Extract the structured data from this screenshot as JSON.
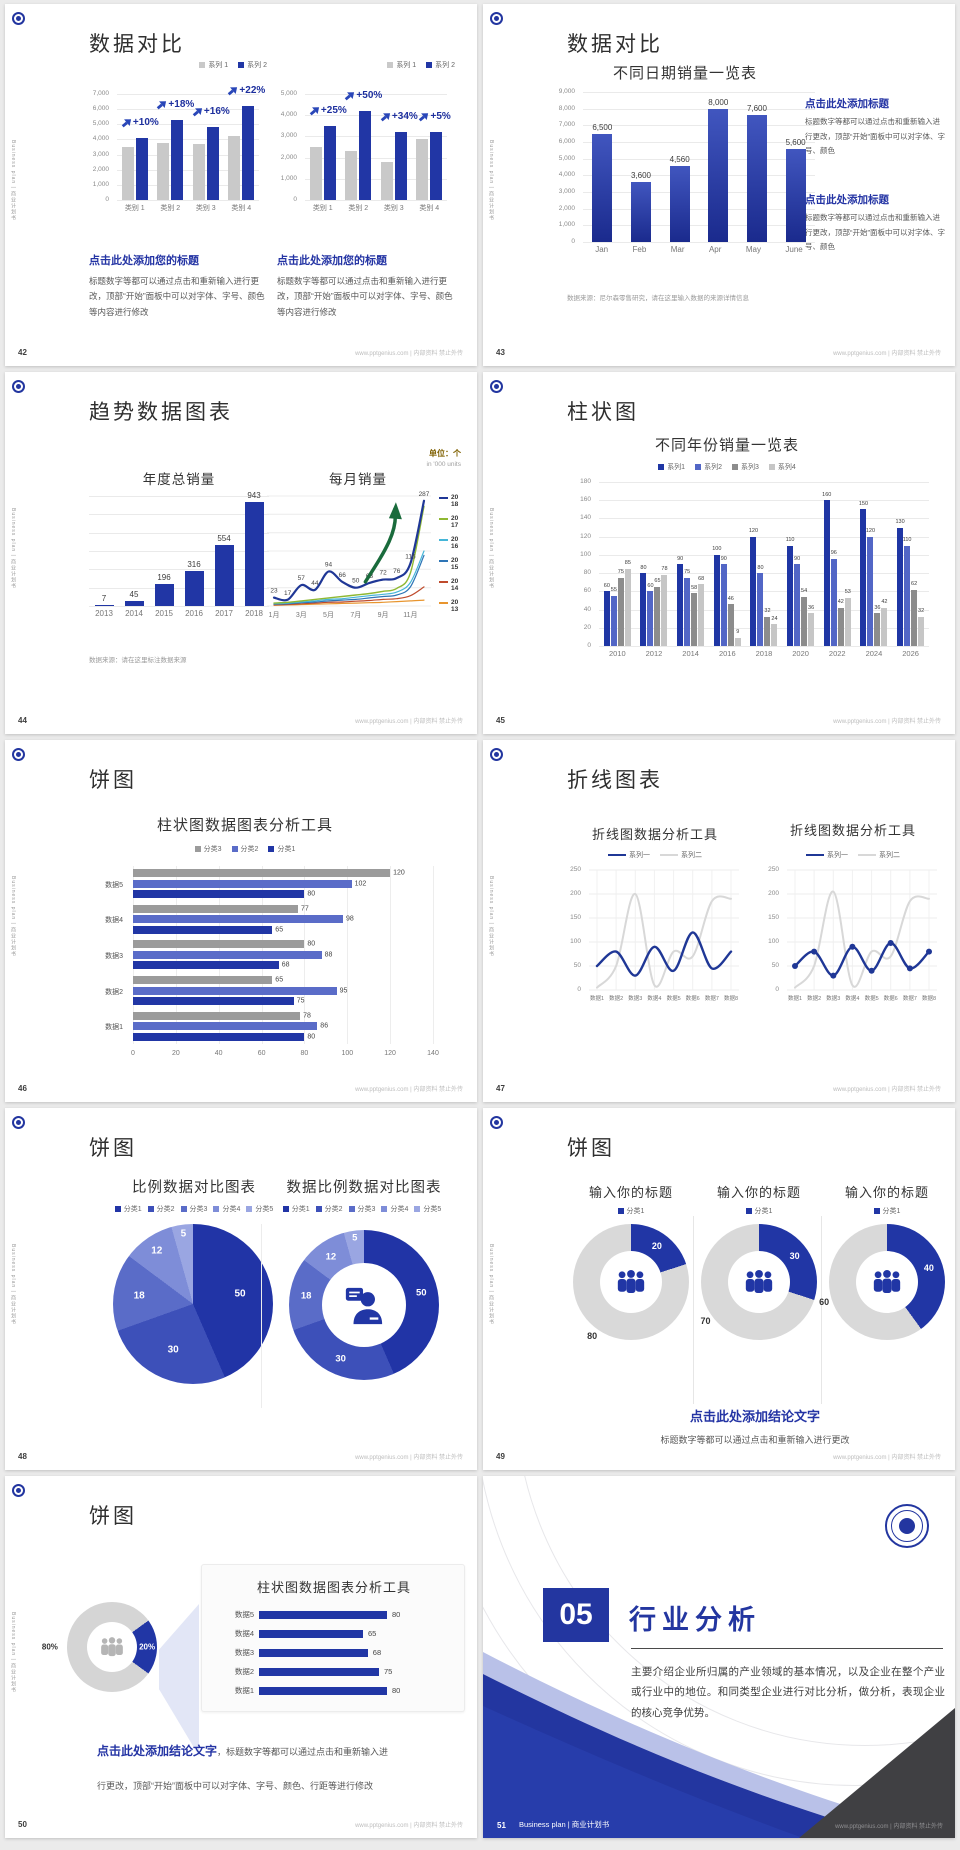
{
  "footer_site": "www.pptgenius.com | 内部资料 禁止外传",
  "sidebar_vertical": "Business plan | 商业计划书",
  "colors": {
    "primary_blue": "#2136a5",
    "mid_blue": "#5a6cc8",
    "light_gray_bar": "#c9c9c9",
    "dark_gray_bar": "#8c8c8c",
    "heading_blue": "#2434a4",
    "unit_gold": "#7f6000",
    "arrow_green": "#1a6b3c"
  },
  "slides": {
    "s42": {
      "page": "42",
      "title": "数据对比",
      "block1": {
        "heading": "点击此处添加您的标题",
        "body": "标题数字等都可以通过点击和重新输入进行更改，顶部“开始”面板中可以对字体、字号、颜色等内容进行修改"
      },
      "block2": {
        "heading": "点击此处添加您的标题",
        "body": "标题数字等都可以通过点击和重新输入进行更改，顶部“开始”面板中可以对字体、字号、颜色等内容进行修改"
      }
    },
    "s43": {
      "page": "43",
      "title": "数据对比",
      "note": "数据来源：尼尔森零售研究，请在这里输入数据的来源详情信息",
      "block1": {
        "heading": "点击此处添加标题",
        "body": "标题数字等都可以通过点击和重新输入进行更改，顶部“开始”面板中可以对字体、字号、颜色"
      },
      "block2": {
        "heading": "点击此处添加标题",
        "body": "标题数字等都可以通过点击和重新输入进行更改，顶部“开始”面板中可以对字体、字号、颜色"
      }
    },
    "s44": {
      "page": "44",
      "title": "趋势数据图表",
      "unit": "单位：个",
      "unit_sub": "in '000 units",
      "note": "数据来源：请在这里标注数据来源"
    },
    "s45": {
      "page": "45",
      "title": "柱状图"
    },
    "s46": {
      "page": "46",
      "title": "饼图"
    },
    "s47": {
      "page": "47",
      "title": "折线图表"
    },
    "s48": {
      "page": "48",
      "title": "饼图"
    },
    "s49": {
      "page": "49",
      "title": "饼图",
      "conclusion_heading": "点击此处添加结论文字",
      "conclusion_body": "标题数字等都可以通过点击和重新输入进行更改"
    },
    "s50": {
      "page": "50",
      "title": "饼图",
      "conclusion_heading": "点击此处添加结论文字",
      "conclusion_line1": "，标题数字等都可以通过点击和重新输入进",
      "conclusion_line2": "行更改，顶部“开始”面板中可以对字体、字号、颜色、行距等进行修改"
    },
    "s51": {
      "page": "51",
      "number": "05",
      "title": "行业分析",
      "body": "主要介绍企业所归属的产业领域的基本情况，以及企业在整个产业或行业中的地位。和同类型企业进行对比分析，做分析，表现企业的核心竞争优势。",
      "footer_label": "Business plan | 商业计划书"
    }
  },
  "chart_data": {
    "c42a": {
      "type": "bar",
      "legend": [
        {
          "label": "系列 1",
          "color": "#c9c9c9"
        },
        {
          "label": "系列 2",
          "color": "#2136a5"
        }
      ],
      "categories": [
        "类别 1",
        "类别 2",
        "类别 3",
        "类别 4"
      ],
      "ymax": 7000,
      "yticks": [
        "7,000",
        "6,000",
        "5,000",
        "4,000",
        "3,000",
        "2,000",
        "1,000",
        "0"
      ],
      "series": [
        {
          "name": "系列 1",
          "color": "#c9c9c9",
          "values": [
            3500,
            3800,
            3700,
            4200
          ]
        },
        {
          "name": "系列 2",
          "color": "#2136a5",
          "values": [
            4100,
            5300,
            4800,
            6200
          ]
        }
      ],
      "pct": [
        "+10%",
        "+18%",
        "+16%",
        "+22%"
      ]
    },
    "c42b": {
      "type": "bar",
      "legend": [
        {
          "label": "系列 1",
          "color": "#c9c9c9"
        },
        {
          "label": "系列 2",
          "color": "#2136a5"
        }
      ],
      "categories": [
        "类别 1",
        "类别 2",
        "类别 3",
        "类别 4"
      ],
      "ymax": 5000,
      "yticks": [
        "5,000",
        "4,000",
        "3,000",
        "2,000",
        "1,000",
        "0"
      ],
      "series": [
        {
          "name": "系列 1",
          "color": "#c9c9c9",
          "values": [
            2500,
            2300,
            1800,
            2900
          ]
        },
        {
          "name": "系列 2",
          "color": "#2136a5",
          "values": [
            3500,
            4200,
            3200,
            3200
          ]
        }
      ],
      "pct": [
        "+25%",
        "+50%",
        "+34%",
        "+5%"
      ]
    },
    "c43": {
      "type": "bar",
      "title": "不同日期销量一览表",
      "categories": [
        "Jan",
        "Feb",
        "Mar",
        "Apr",
        "May",
        "June"
      ],
      "ymax": 9000,
      "yticks": [
        "9,000",
        "8,000",
        "7,000",
        "6,000",
        "5,000",
        "4,000",
        "3,000",
        "2,000",
        "1,000",
        "0"
      ],
      "series": [
        {
          "name": "销量",
          "color": "#2136a5",
          "values": [
            6500,
            3600,
            4560,
            8000,
            7600,
            5600
          ],
          "labels": [
            "6,500",
            "3,600",
            "4,560",
            "8,000",
            "7,600",
            "5,600"
          ]
        }
      ]
    },
    "c44a": {
      "type": "bar",
      "title": "年度总销量",
      "categories": [
        "2013",
        "2014",
        "2015",
        "2016",
        "2017",
        "2018"
      ],
      "ymax": 1000,
      "series": [
        {
          "name": "年度总销量",
          "color": "#2136a5",
          "values": [
            7,
            45,
            196,
            316,
            554,
            943
          ],
          "labels": [
            "7",
            "45",
            "196",
            "316",
            "554",
            "943"
          ]
        }
      ]
    },
    "c44b": {
      "type": "line",
      "title": "每月销量",
      "x": [
        "1月",
        null,
        "3月",
        null,
        "5月",
        null,
        "7月",
        null,
        "9月",
        null,
        "11月",
        null
      ],
      "ymax": 300,
      "arrow": true,
      "series": [
        {
          "name": "2018",
          "color": "#1f3796",
          "width": 2.2,
          "values": [
            23,
            17,
            57,
            44,
            94,
            66,
            50,
            63,
            72,
            76,
            116,
            287
          ],
          "labels": [
            "23",
            "17",
            "57",
            "44",
            "94",
            "66",
            "50",
            "63",
            "72",
            "76",
            "116",
            "287"
          ]
        },
        {
          "name": "2017",
          "color": "#8fb832",
          "width": 1.4,
          "values": [
            8,
            10,
            14,
            18,
            22,
            26,
            30,
            34,
            40,
            48,
            90,
            272
          ]
        },
        {
          "name": "2016",
          "color": "#45b6d8",
          "width": 1.2,
          "values": [
            6,
            8,
            11,
            14,
            18,
            20,
            24,
            28,
            32,
            38,
            64,
            150
          ]
        },
        {
          "name": "2015",
          "color": "#2e75b6",
          "width": 1.2,
          "values": [
            5,
            6,
            9,
            11,
            14,
            16,
            18,
            22,
            26,
            30,
            52,
            138
          ]
        },
        {
          "name": "2014",
          "color": "#bf4b2c",
          "width": 1.2,
          "values": [
            3,
            4,
            6,
            8,
            10,
            11,
            13,
            15,
            18,
            20,
            28,
            52
          ]
        },
        {
          "name": "2013",
          "color": "#e8952e",
          "width": 1.2,
          "values": [
            2,
            3,
            4,
            5,
            6,
            7,
            8,
            9,
            10,
            12,
            14,
            16
          ]
        }
      ]
    },
    "c45": {
      "type": "bar",
      "title": "不同年份销量一览表",
      "legend": [
        {
          "label": "系列1",
          "color": "#1f36a4"
        },
        {
          "label": "系列2",
          "color": "#5266c6"
        },
        {
          "label": "系列3",
          "color": "#8c8c8c"
        },
        {
          "label": "系列4",
          "color": "#c6c6c6"
        }
      ],
      "categories": [
        "2010",
        "2012",
        "2014",
        "2016",
        "2018",
        "2020",
        "2022",
        "2024",
        "2026"
      ],
      "ymax": 180,
      "yticks": [
        "180",
        "160",
        "140",
        "120",
        "100",
        "80",
        "60",
        "40",
        "20",
        "0"
      ],
      "series": [
        {
          "name": "系列1",
          "color": "#1f36a4",
          "values": [
            60,
            80,
            90,
            100,
            120,
            110,
            160,
            150,
            130
          ],
          "labels": [
            "60",
            "80",
            "90",
            "100",
            "120",
            "110",
            "160",
            "150",
            "130"
          ]
        },
        {
          "name": "系列2",
          "color": "#5266c6",
          "values": [
            55,
            60,
            75,
            90,
            80,
            90,
            96,
            120,
            110
          ],
          "labels": [
            "55",
            "60",
            "75",
            "90",
            "80",
            "90",
            "96",
            "120",
            "110"
          ]
        },
        {
          "name": "系列3",
          "color": "#8c8c8c",
          "values": [
            75,
            65,
            58,
            46,
            32,
            54,
            42,
            36,
            62
          ],
          "labels": [
            "75",
            "65",
            "58",
            "46",
            "32",
            "54",
            "42",
            "36",
            "62"
          ]
        },
        {
          "name": "系列4",
          "color": "#c6c6c6",
          "values": [
            85,
            78,
            68,
            9,
            24,
            36,
            53,
            42,
            32
          ],
          "labels": [
            "85",
            "78",
            "68",
            "9",
            "24",
            "36",
            "53",
            "42",
            "32"
          ]
        }
      ]
    },
    "c46": {
      "type": "hbar",
      "title": "柱状图数据图表分析工具",
      "legend": [
        {
          "label": "分类3",
          "color": "#9b9b9b"
        },
        {
          "label": "分类2",
          "color": "#5a6cc8"
        },
        {
          "label": "分类1",
          "color": "#2136a5"
        }
      ],
      "categories": [
        "数据5",
        "数据4",
        "数据3",
        "数据2",
        "数据1"
      ],
      "xmax": 140,
      "xticks": [
        "0",
        "20",
        "40",
        "60",
        "80",
        "100",
        "120",
        "140"
      ],
      "series": [
        {
          "name": "分类3",
          "color": "#9b9b9b",
          "values": [
            120,
            77,
            80,
            65,
            78
          ]
        },
        {
          "name": "分类2",
          "color": "#5a6cc8",
          "values": [
            102,
            98,
            88,
            95,
            86
          ]
        },
        {
          "name": "分类1",
          "color": "#2136a5",
          "values": [
            80,
            65,
            68,
            75,
            80
          ]
        }
      ]
    },
    "c47a": {
      "type": "line",
      "title": "折线图数据分析工具",
      "legend": [
        {
          "label": "系列一",
          "color": "#1f3796",
          "type": "line"
        },
        {
          "label": "系列二",
          "color": "#d8d8d8",
          "type": "line"
        }
      ],
      "x": [
        "数据1",
        "数据2",
        "数据3",
        "数据4",
        "数据5",
        "数据6",
        "数据7",
        "数据8"
      ],
      "ymax": 250,
      "yticks": [
        "250",
        "200",
        "150",
        "100",
        "50",
        "0"
      ],
      "series": [
        {
          "name": "系列一",
          "color": "#1f3796",
          "width": 2.4,
          "values": [
            50,
            80,
            30,
            90,
            40,
            120,
            45,
            80
          ]
        },
        {
          "name": "系列二",
          "color": "#d8d8d8",
          "width": 2,
          "values": [
            5,
            50,
            200,
            10,
            80,
            70,
            185,
            190
          ]
        }
      ]
    },
    "c47b": {
      "type": "line",
      "title": "折线图数据分析工具",
      "legend": [
        {
          "label": "系列一",
          "color": "#1f3796",
          "type": "line"
        },
        {
          "label": "系列二",
          "color": "#d8d8d8",
          "type": "line"
        }
      ],
      "x": [
        "数据1",
        "数据2",
        "数据3",
        "数据4",
        "数据5",
        "数据6",
        "数据7",
        "数据8"
      ],
      "ymax": 250,
      "yticks": [
        "250",
        "200",
        "150",
        "100",
        "50",
        "0"
      ],
      "series": [
        {
          "name": "系列一",
          "color": "#1f3796",
          "width": 2.4,
          "markers": true,
          "values": [
            50,
            80,
            30,
            90,
            40,
            98,
            45,
            80
          ]
        },
        {
          "name": "系列二",
          "color": "#d8d8d8",
          "width": 2,
          "values": [
            5,
            50,
            205,
            10,
            80,
            70,
            185,
            190
          ]
        }
      ]
    },
    "c48a": {
      "type": "pie",
      "title": "比例数据对比图表",
      "legend": [
        {
          "label": "分类1",
          "color": "#2134a6"
        },
        {
          "label": "分类2",
          "color": "#3d50b9"
        },
        {
          "label": "分类3",
          "color": "#5a6cc8"
        },
        {
          "label": "分类4",
          "color": "#7e8dd8"
        },
        {
          "label": "分类5",
          "color": "#9aa6e2"
        }
      ],
      "values": [
        50,
        30,
        18,
        12,
        5
      ],
      "labels": [
        "50",
        "30",
        "18",
        "12",
        "5"
      ],
      "colors": [
        "#2134a6",
        "#3d50b9",
        "#5a6cc8",
        "#7e8dd8",
        "#9aa6e2"
      ]
    },
    "c48b": {
      "type": "donut",
      "title": "数据比例数据对比图表",
      "legend": [
        {
          "label": "分类1",
          "color": "#2134a6"
        },
        {
          "label": "分类2",
          "color": "#3d50b9"
        },
        {
          "label": "分类3",
          "color": "#5a6cc8"
        },
        {
          "label": "分类4",
          "color": "#7e8dd8"
        },
        {
          "label": "分类5",
          "color": "#9aa6e2"
        }
      ],
      "values": [
        50,
        30,
        18,
        12,
        5
      ],
      "labels": [
        "50",
        "30",
        "18",
        "12",
        "5"
      ],
      "colors": [
        "#2134a6",
        "#3d50b9",
        "#5a6cc8",
        "#7e8dd8",
        "#9aa6e2"
      ],
      "center_icon": "person-speech-bubble-icon"
    },
    "c49": {
      "type": "donut-set",
      "titles": [
        "输入你的标题",
        "输入你的标题",
        "输入你的标题"
      ],
      "legend_label": "分类1",
      "legend_color": "#2136a5",
      "center_icon": "people-group-icon",
      "items": [
        {
          "values": [
            20,
            80
          ],
          "labels": [
            "20",
            "80"
          ],
          "colors": [
            "#2136a5",
            "#d9d9d9"
          ]
        },
        {
          "values": [
            30,
            70
          ],
          "labels": [
            "30",
            "70"
          ],
          "colors": [
            "#2136a5",
            "#d9d9d9"
          ]
        },
        {
          "values": [
            40,
            60
          ],
          "labels": [
            "40",
            "60"
          ],
          "colors": [
            "#2136a5",
            "#d9d9d9"
          ]
        }
      ]
    },
    "c50a": {
      "type": "donut",
      "values": [
        20,
        80
      ],
      "labels": [
        "20%",
        "80%"
      ],
      "colors": [
        "#2136a5",
        "#d5d5d5"
      ],
      "center_icon": "people-group-icon-gray"
    },
    "c50b": {
      "type": "hbar-panel",
      "title": "柱状图数据图表分析工具",
      "categories": [
        "数据5",
        "数据4",
        "数据3",
        "数据2",
        "数据1"
      ],
      "values": [
        80,
        65,
        68,
        75,
        80
      ],
      "color": "#2136a5"
    }
  }
}
